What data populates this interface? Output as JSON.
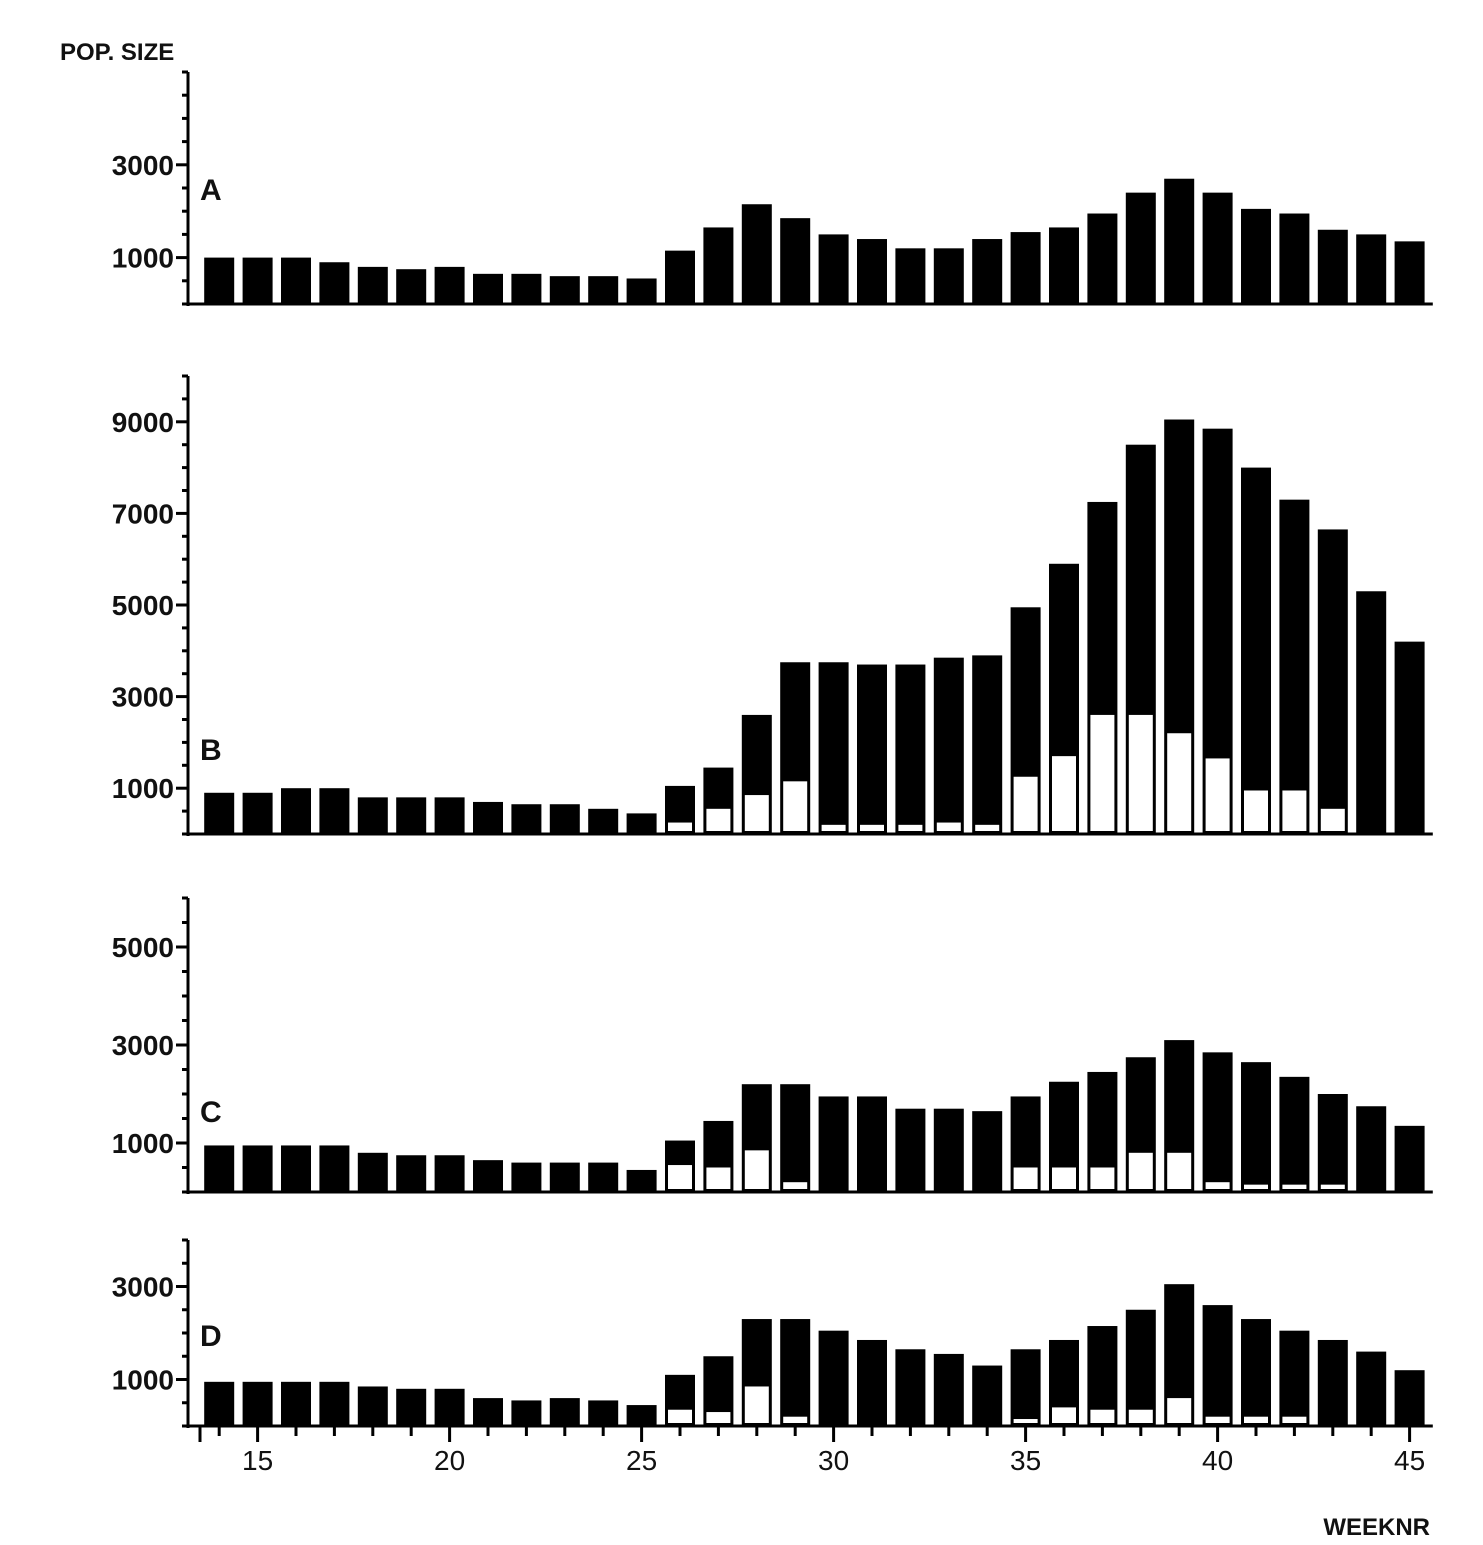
{
  "chart_data": [
    {
      "type": "bar",
      "panel": "A",
      "ylabel": "POP. SIZE",
      "xlabel": "",
      "ylim": [
        0,
        5000
      ],
      "yticks": [
        1000,
        3000
      ],
      "x": [
        14,
        15,
        16,
        17,
        18,
        19,
        20,
        21,
        22,
        23,
        24,
        25,
        26,
        27,
        28,
        29,
        30,
        31,
        32,
        33,
        34,
        35,
        36,
        37,
        38,
        39,
        40,
        41,
        42,
        43,
        44,
        45
      ],
      "series": [
        {
          "values": [
            1000,
            1000,
            1000,
            900,
            800,
            750,
            800,
            650,
            650,
            600,
            600,
            550,
            1150,
            1650,
            2150,
            1850,
            1500,
            1400,
            1200,
            1200,
            1400,
            1550,
            1650,
            1950,
            2400,
            2700,
            2400,
            2050,
            1950,
            1600,
            1500,
            1350
          ]
        }
      ]
    },
    {
      "type": "bar",
      "panel": "B",
      "ylabel": "",
      "xlabel": "",
      "ylim": [
        0,
        10000
      ],
      "yticks": [
        1000,
        3000,
        5000,
        7000,
        9000
      ],
      "x": [
        14,
        15,
        16,
        17,
        18,
        19,
        20,
        21,
        22,
        23,
        24,
        25,
        26,
        27,
        28,
        29,
        30,
        31,
        32,
        33,
        34,
        35,
        36,
        37,
        38,
        39,
        40,
        41,
        42,
        43,
        44,
        45
      ],
      "series": [
        {
          "values": [
            900,
            900,
            1000,
            1000,
            800,
            800,
            800,
            700,
            650,
            650,
            550,
            450,
            1050,
            1450,
            2600,
            3750,
            3750,
            3700,
            3700,
            3850,
            3900,
            4950,
            5900,
            7250,
            8500,
            9050,
            8850,
            8000,
            7300,
            6650,
            5300,
            4200
          ]
        },
        {
          "values": [
            0,
            0,
            0,
            0,
            0,
            0,
            0,
            0,
            0,
            0,
            0,
            0,
            250,
            550,
            850,
            1150,
            200,
            200,
            200,
            250,
            200,
            1250,
            1700,
            2600,
            2600,
            2200,
            1650,
            950,
            950,
            550,
            0,
            0
          ]
        }
      ]
    },
    {
      "type": "bar",
      "panel": "C",
      "ylabel": "",
      "xlabel": "",
      "ylim": [
        0,
        6000
      ],
      "yticks": [
        1000,
        3000,
        5000
      ],
      "x": [
        14,
        15,
        16,
        17,
        18,
        19,
        20,
        21,
        22,
        23,
        24,
        25,
        26,
        27,
        28,
        29,
        30,
        31,
        32,
        33,
        34,
        35,
        36,
        37,
        38,
        39,
        40,
        41,
        42,
        43,
        44,
        45
      ],
      "series": [
        {
          "values": [
            950,
            950,
            950,
            950,
            800,
            750,
            750,
            650,
            600,
            600,
            600,
            450,
            1050,
            1450,
            2200,
            2200,
            1950,
            1950,
            1700,
            1700,
            1650,
            1950,
            2250,
            2450,
            2750,
            3100,
            2850,
            2650,
            2350,
            2000,
            1750,
            1350
          ]
        },
        {
          "values": [
            0,
            0,
            0,
            0,
            0,
            0,
            0,
            0,
            0,
            0,
            0,
            0,
            550,
            500,
            850,
            200,
            0,
            0,
            0,
            0,
            0,
            500,
            500,
            500,
            800,
            800,
            200,
            150,
            150,
            150,
            0,
            0
          ]
        }
      ]
    },
    {
      "type": "bar",
      "panel": "D",
      "ylabel": "",
      "xlabel": "WEEKNR",
      "ylim": [
        0,
        4000
      ],
      "yticks": [
        1000,
        3000
      ],
      "x": [
        14,
        15,
        16,
        17,
        18,
        19,
        20,
        21,
        22,
        23,
        24,
        25,
        26,
        27,
        28,
        29,
        30,
        31,
        32,
        33,
        34,
        35,
        36,
        37,
        38,
        39,
        40,
        41,
        42,
        43,
        44,
        45
      ],
      "xticks": [
        15,
        20,
        25,
        30,
        35,
        40,
        45
      ],
      "series": [
        {
          "values": [
            950,
            950,
            950,
            950,
            850,
            800,
            800,
            600,
            550,
            600,
            550,
            450,
            1100,
            1500,
            2300,
            2300,
            2050,
            1850,
            1650,
            1550,
            1300,
            1650,
            1850,
            2150,
            2500,
            3050,
            2600,
            2300,
            2050,
            1850,
            1600,
            1200
          ]
        },
        {
          "values": [
            0,
            0,
            0,
            0,
            0,
            0,
            0,
            0,
            0,
            0,
            0,
            0,
            350,
            300,
            850,
            200,
            0,
            0,
            0,
            0,
            0,
            150,
            400,
            350,
            350,
            600,
            200,
            200,
            200,
            0,
            0,
            0
          ]
        }
      ]
    }
  ],
  "colors": {
    "ink": "#000000",
    "paper": "#ffffff",
    "inner_bar": "#ffffff"
  }
}
